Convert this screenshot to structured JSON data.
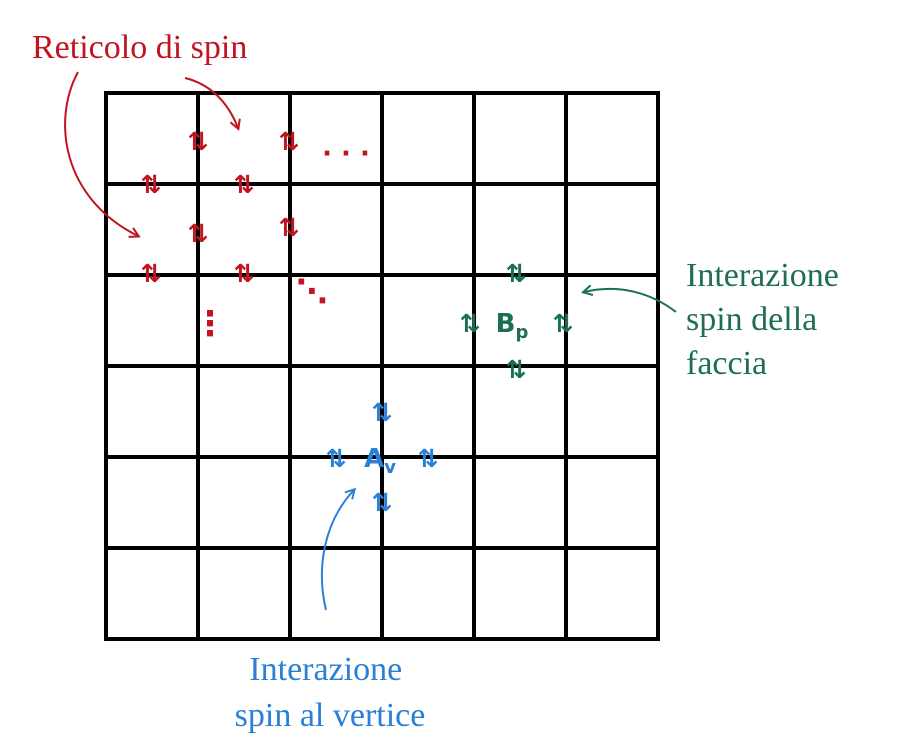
{
  "colors": {
    "grid": "#000000",
    "lattice": "#c0141e",
    "face": "#1c7050",
    "vertex": "#2a7fd6"
  },
  "grid": {
    "rows": 6,
    "cols": 6
  },
  "spin_symbol": "⇅",
  "lattice": {
    "label": "Reticolo di spin",
    "row_ellipsis": "· · ·",
    "vertical_ellipsis": "⋮",
    "diagonal_ellipsis": "⋱"
  },
  "face_operator": {
    "symbol": "B",
    "subscript": "p",
    "label_lines": [
      "Interazione",
      "spin della",
      "faccia"
    ]
  },
  "vertex_operator": {
    "symbol": "A",
    "subscript": "v",
    "label_lines": [
      "Interazione",
      "spin al vertice"
    ]
  }
}
